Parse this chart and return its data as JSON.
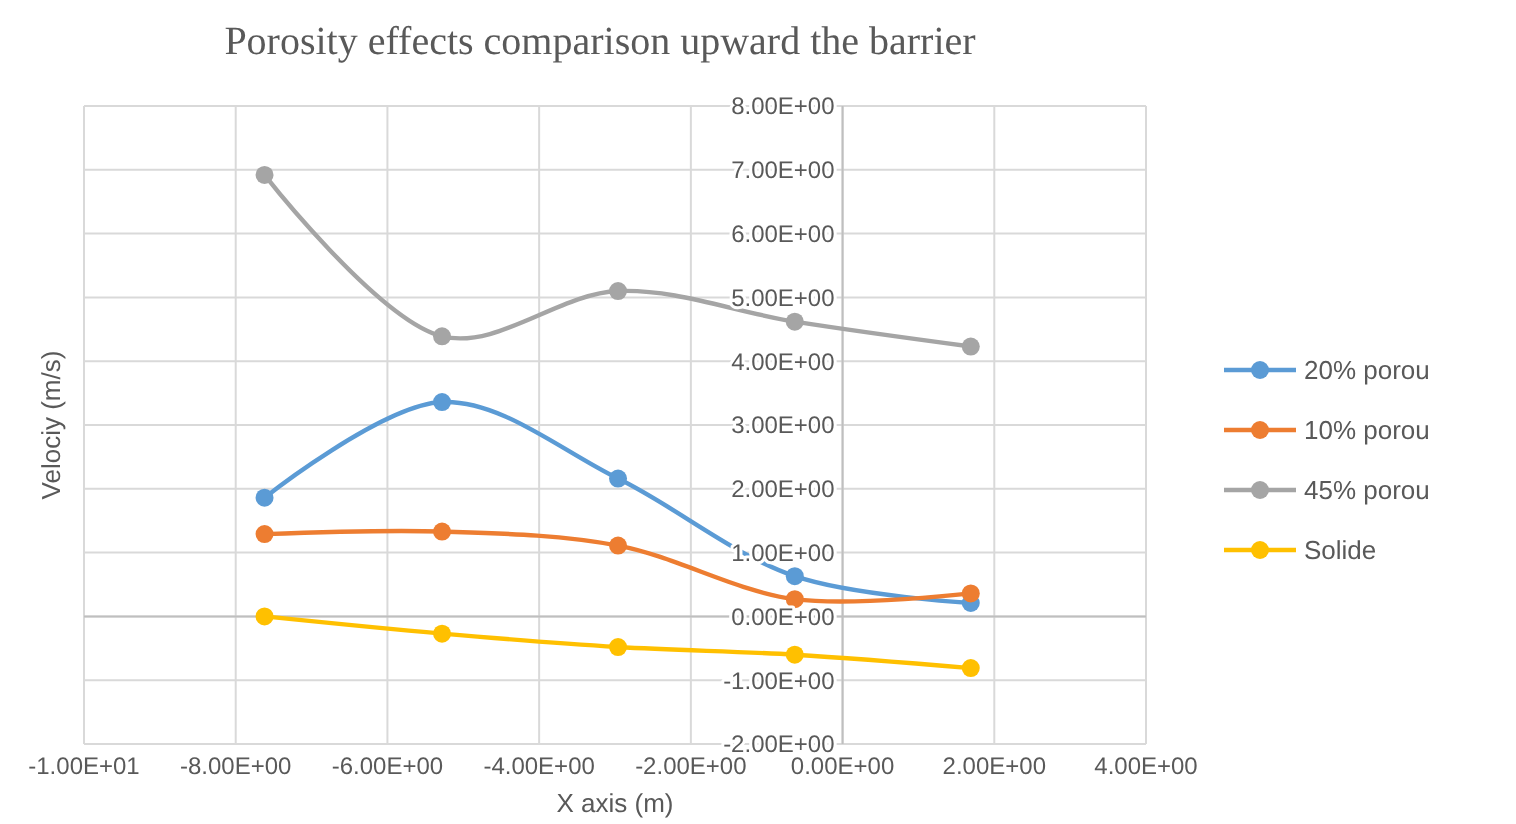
{
  "chart_data": {
    "type": "line",
    "title": "Porosity effects comparison upward the  barrier",
    "xlabel": "X axis (m)",
    "ylabel": "Velociy  (m/s)",
    "x": [
      -7.62,
      -5.28,
      -2.96,
      -0.63,
      1.69
    ],
    "series": [
      {
        "name": "20% porou",
        "color": "#5b9bd5",
        "values": [
          1.86,
          3.36,
          2.16,
          0.63,
          0.21
        ]
      },
      {
        "name": "10% porou",
        "color": "#ed7d31",
        "values": [
          1.29,
          1.33,
          1.11,
          0.27,
          0.36
        ]
      },
      {
        "name": "45% porou",
        "color": "#a5a5a5",
        "values": [
          6.92,
          4.39,
          5.1,
          4.62,
          4.23
        ]
      },
      {
        "name": "Solide",
        "color": "#ffc000",
        "values": [
          0,
          -0.27,
          -0.48,
          -0.6,
          -0.81
        ]
      }
    ],
    "xlim": [
      -10,
      4
    ],
    "ylim": [
      -2,
      8
    ],
    "xticks": [
      {
        "value": -10,
        "label": "-1.00E+01"
      },
      {
        "value": -8,
        "label": "-8.00E+00"
      },
      {
        "value": -6,
        "label": "-6.00E+00"
      },
      {
        "value": -4,
        "label": "-4.00E+00"
      },
      {
        "value": -2,
        "label": "-2.00E+00"
      },
      {
        "value": 0,
        "label": "0.00E+00"
      },
      {
        "value": 2,
        "label": "2.00E+00"
      },
      {
        "value": 4,
        "label": "4.00E+00"
      }
    ],
    "yticks": [
      {
        "value": -2,
        "label": "-2.00E+00"
      },
      {
        "value": -1,
        "label": "-1.00E+00"
      },
      {
        "value": 0,
        "label": "0.00E+00"
      },
      {
        "value": 1,
        "label": "1.00E+00"
      },
      {
        "value": 2,
        "label": "2.00E+00"
      },
      {
        "value": 3,
        "label": "3.00E+00"
      },
      {
        "value": 4,
        "label": "4.00E+00"
      },
      {
        "value": 5,
        "label": "5.00E+00"
      },
      {
        "value": 6,
        "label": "6.00E+00"
      },
      {
        "value": 7,
        "label": "7.00E+00"
      },
      {
        "value": 8,
        "label": "8.00E+00"
      }
    ],
    "grid": true,
    "legend": "right",
    "marker": "circle",
    "line_style": "solid"
  }
}
